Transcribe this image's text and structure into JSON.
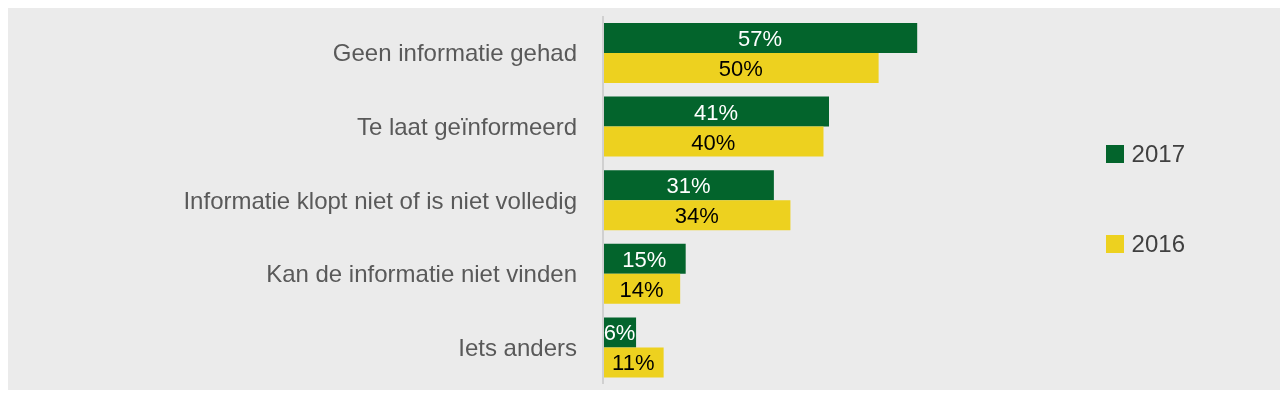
{
  "chart_data": {
    "type": "bar",
    "orientation": "horizontal",
    "categories": [
      "Geen informatie gehad",
      "Te laat geïnformeerd",
      "Informatie klopt niet of is niet volledig",
      "Kan de informatie niet vinden",
      "Iets anders"
    ],
    "series": [
      {
        "name": "2017",
        "color": "#03642c",
        "values": [
          57,
          41,
          31,
          15,
          6
        ],
        "value_labels": [
          "57%",
          "41%",
          "31%",
          "15%",
          "6%"
        ]
      },
      {
        "name": "2016",
        "color": "#edd11f",
        "values": [
          50,
          40,
          34,
          14,
          11
        ],
        "value_labels": [
          "50%",
          "40%",
          "34%",
          "14%",
          "11%"
        ]
      }
    ],
    "legend": "right",
    "grid": false
  }
}
